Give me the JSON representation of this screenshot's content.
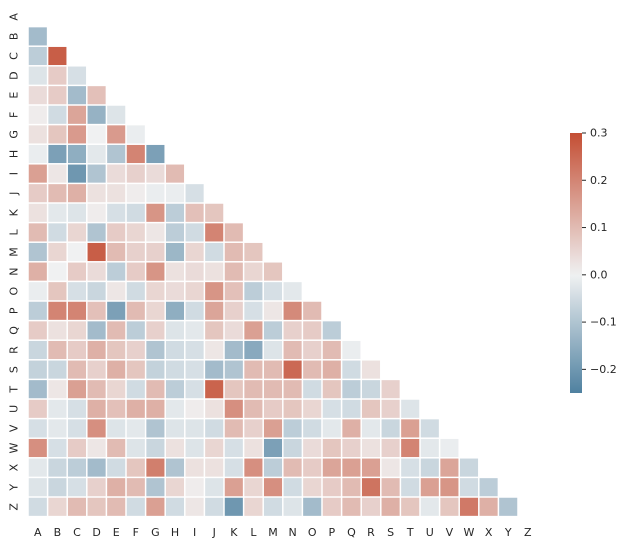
{
  "chart_data": {
    "type": "heatmap",
    "variant": "lower-triangle correlation matrix (diagonal masked)",
    "labels": [
      "A",
      "B",
      "C",
      "D",
      "E",
      "F",
      "G",
      "H",
      "I",
      "J",
      "K",
      "L",
      "M",
      "N",
      "O",
      "P",
      "Q",
      "R",
      "S",
      "T",
      "U",
      "V",
      "W",
      "X",
      "Y",
      "Z"
    ],
    "matrix_lower": [
      [],
      [
        -0.12
      ],
      [
        -0.08,
        0.27
      ],
      [
        -0.03,
        0.07,
        -0.04
      ],
      [
        0.04,
        0.07,
        -0.12,
        0.09
      ],
      [
        0.01,
        -0.05,
        0.14,
        -0.14,
        -0.03
      ],
      [
        0.03,
        0.08,
        0.16,
        0.0,
        0.16,
        -0.01
      ],
      [
        -0.01,
        -0.18,
        -0.15,
        -0.02,
        -0.1,
        0.2,
        -0.18
      ],
      [
        0.15,
        0.02,
        -0.2,
        -0.1,
        0.04,
        0.06,
        0.04,
        0.1
      ],
      [
        0.07,
        0.1,
        0.12,
        0.03,
        0.03,
        0.01,
        -0.01,
        -0.01,
        -0.04
      ],
      [
        0.03,
        -0.02,
        -0.03,
        0.01,
        -0.04,
        -0.05,
        0.17,
        -0.08,
        0.09,
        0.08
      ],
      [
        0.1,
        -0.05,
        0.05,
        -0.1,
        0.07,
        0.05,
        0.02,
        -0.08,
        -0.05,
        0.2,
        0.1
      ],
      [
        -0.1,
        0.05,
        0.0,
        0.27,
        0.1,
        0.06,
        0.06,
        -0.13,
        0.05,
        -0.05,
        0.1,
        0.08
      ],
      [
        0.12,
        0.0,
        0.07,
        0.04,
        -0.08,
        0.07,
        0.17,
        0.03,
        0.04,
        0.03,
        0.1,
        0.05,
        0.08
      ],
      [
        -0.01,
        0.08,
        -0.04,
        -0.06,
        0.02,
        -0.05,
        0.05,
        0.04,
        0.05,
        0.17,
        0.09,
        -0.08,
        -0.04,
        -0.02
      ],
      [
        -0.08,
        0.2,
        0.2,
        0.09,
        -0.18,
        0.1,
        0.05,
        -0.15,
        -0.05,
        0.14,
        0.06,
        -0.04,
        0.02,
        0.19,
        0.1
      ],
      [
        0.07,
        0.03,
        0.05,
        -0.12,
        0.1,
        -0.08,
        0.06,
        -0.03,
        -0.02,
        0.08,
        0.04,
        0.15,
        -0.08,
        0.06,
        0.07,
        -0.08
      ],
      [
        -0.06,
        0.1,
        0.07,
        0.12,
        0.08,
        0.06,
        -0.1,
        -0.05,
        -0.04,
        0.02,
        -0.12,
        -0.16,
        -0.03,
        0.1,
        0.06,
        0.1,
        -0.01
      ],
      [
        -0.07,
        -0.06,
        0.1,
        0.06,
        0.12,
        0.08,
        -0.07,
        -0.05,
        -0.04,
        -0.12,
        -0.1,
        0.1,
        0.1,
        0.25,
        0.1,
        0.12,
        -0.05,
        0.03
      ],
      [
        -0.12,
        0.02,
        0.15,
        0.1,
        0.05,
        -0.05,
        0.1,
        -0.08,
        -0.04,
        0.26,
        0.08,
        0.1,
        0.1,
        0.1,
        -0.05,
        0.08,
        -0.08,
        -0.06,
        0.06
      ],
      [
        0.07,
        -0.02,
        -0.04,
        0.12,
        0.09,
        0.12,
        0.12,
        -0.02,
        0.01,
        0.03,
        0.18,
        0.1,
        0.07,
        0.08,
        0.05,
        -0.04,
        -0.05,
        0.08,
        0.06,
        -0.03
      ],
      [
        -0.04,
        -0.02,
        -0.04,
        0.18,
        -0.03,
        -0.02,
        -0.1,
        -0.03,
        -0.03,
        -0.05,
        0.1,
        0.06,
        0.15,
        -0.08,
        -0.05,
        -0.02,
        0.12,
        -0.02,
        -0.06,
        0.15,
        -0.05
      ],
      [
        0.18,
        -0.04,
        0.07,
        0.02,
        0.1,
        -0.03,
        -0.06,
        0.03,
        -0.03,
        0.05,
        -0.04,
        0.03,
        -0.18,
        -0.06,
        0.04,
        0.08,
        0.06,
        0.03,
        0.06,
        0.2,
        -0.02,
        -0.01
      ],
      [
        -0.02,
        -0.06,
        -0.08,
        -0.12,
        -0.05,
        0.08,
        0.21,
        -0.1,
        0.03,
        0.03,
        -0.04,
        0.18,
        -0.08,
        0.1,
        0.07,
        0.14,
        0.15,
        0.15,
        0.02,
        -0.04,
        -0.06,
        0.14,
        -0.06
      ],
      [
        -0.03,
        -0.06,
        -0.04,
        0.06,
        0.12,
        0.1,
        -0.1,
        0.05,
        0.01,
        -0.03,
        0.15,
        0.05,
        0.18,
        -0.05,
        0.05,
        0.07,
        0.1,
        0.23,
        0.1,
        -0.05,
        0.15,
        0.17,
        -0.05,
        -0.08
      ],
      [
        -0.05,
        0.05,
        0.1,
        0.08,
        0.1,
        -0.05,
        0.15,
        -0.05,
        0.02,
        -0.05,
        -0.2,
        0.05,
        -0.05,
        -0.03,
        -0.12,
        0.07,
        0.1,
        0.06,
        0.12,
        0.08,
        -0.02,
        0.08,
        0.22,
        0.12,
        -0.1
      ]
    ],
    "vmin": -0.25,
    "vmax": 0.3,
    "colormap": {
      "negative": "#4f81a0",
      "center": "#f0f1f2",
      "positive": "#c44e34"
    },
    "colorbar": {
      "ticks": [
        0.3,
        0.2,
        0.1,
        0.0,
        -0.1,
        -0.2
      ],
      "tick_labels": [
        "0.3",
        "0.2",
        "0.1",
        "0.0",
        "−0.1",
        "−0.2"
      ],
      "placement": "right"
    }
  }
}
